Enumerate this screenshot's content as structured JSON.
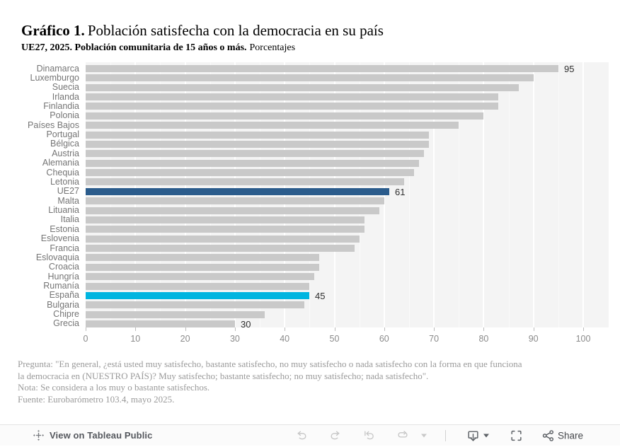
{
  "header": {
    "title_prefix": "Gráfico 1.",
    "title_text": "Población satisfecha con la democracia en su país",
    "subtitle_bold": "UE27, 2025. Población comunitaria de 15 años o más.",
    "subtitle_regular": "Porcentajes"
  },
  "chart_data": {
    "type": "bar",
    "orientation": "horizontal",
    "title": "Gráfico 1. Población satisfecha con la democracia en su país",
    "subtitle": "UE27, 2025. Población comunitaria de 15 años o más. Porcentajes",
    "categories": [
      "Dinamarca",
      "Luxemburgo",
      "Suecia",
      "Irlanda",
      "Finlandia",
      "Polonia",
      "Países Bajos",
      "Portugal",
      "Bélgica",
      "Austria",
      "Alemania",
      "Chequia",
      "Letonia",
      "UE27",
      "Malta",
      "Lituania",
      "Italia",
      "Estonia",
      "Eslovenia",
      "Francia",
      "Eslovaquia",
      "Croacia",
      "Hungría",
      "Rumanía",
      "España",
      "Bulgaria",
      "Chipre",
      "Grecia"
    ],
    "values": [
      95,
      90,
      87,
      83,
      83,
      80,
      75,
      69,
      69,
      68,
      67,
      66,
      64,
      61,
      60,
      59,
      56,
      56,
      55,
      54,
      47,
      47,
      46,
      45,
      45,
      44,
      36,
      30
    ],
    "value_labels_shown": [
      "Dinamarca",
      "UE27",
      "España",
      "Grecia"
    ],
    "xlim": [
      0,
      100
    ],
    "xticks": [
      0,
      10,
      20,
      30,
      40,
      50,
      60,
      70,
      80,
      90,
      100
    ],
    "grid": "vertical white gridlines, major every 10, minor every 5",
    "legend": "none",
    "colors": {
      "bar_default": "#c9c9c9",
      "plot_background": "#f4f4f4",
      "category_label": "#757575",
      "tick_label": "#8a8a8a",
      "value_label": "#2e2e2e"
    },
    "highlight_colors": {
      "UE27": "#2b5c8c",
      "España": "#00b5e0"
    }
  },
  "footnote": {
    "lines": [
      "Pregunta: \"En general, ¿está usted muy satisfecho, bastante satisfecho, no muy satisfecho o nada satisfecho con la forma en que funciona",
      "la democracia en (NUESTRO PAÍS)? Muy satisfecho; bastante satisfecho; no muy satisfecho; nada satisfecho\".",
      "Nota: Se considera a los muy o bastante satisfechos.",
      "Fuente: Eurobarómetro 103.4, mayo 2025."
    ]
  },
  "toolbar": {
    "view_label": "View on Tableau Public",
    "share_label": "Share",
    "icon_colors": {
      "disabled": "#c6c6c6",
      "enabled": "#5d6166",
      "logo": "#76797e"
    }
  }
}
